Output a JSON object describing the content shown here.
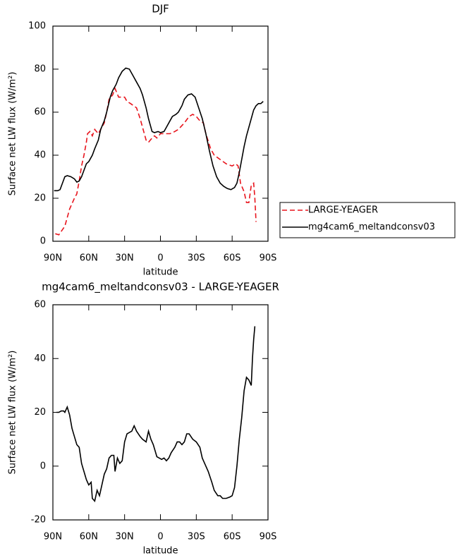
{
  "chart_data": [
    {
      "type": "line",
      "title": "DJF",
      "x_label": "latitude",
      "y_label": "Surface net LW flux (W/m²)",
      "xlim": [
        90,
        -90
      ],
      "xticks": [
        {
          "value": 90,
          "label": "90N"
        },
        {
          "value": 60,
          "label": "60N"
        },
        {
          "value": 30,
          "label": "30N"
        },
        0,
        {
          "value": -30,
          "label": "30S"
        },
        {
          "value": -60,
          "label": "60S"
        },
        {
          "value": -90,
          "label": "90S"
        }
      ],
      "ylim": [
        0,
        100
      ],
      "yticks": [
        0,
        20,
        40,
        60,
        80,
        100
      ],
      "legend": "outside-right",
      "series": [
        {
          "name": "LARGE-YEAGER",
          "color": "#e8141c",
          "line_style": "dashed",
          "x": [
            88,
            85,
            80,
            76,
            72,
            70,
            68,
            66,
            64,
            62,
            61,
            59,
            57,
            55,
            52,
            50,
            47,
            45,
            43,
            40,
            38,
            35,
            32,
            30,
            28,
            25,
            20,
            17,
            15,
            12,
            10,
            7,
            5,
            3,
            0,
            -5,
            -8,
            -12,
            -15,
            -20,
            -24,
            -27,
            -30,
            -33,
            -36,
            -38,
            -42,
            -45,
            -50,
            -55,
            -60,
            -63,
            -65,
            -67,
            -70,
            -72,
            -74,
            -76,
            -78,
            -79,
            -80
          ],
          "values": [
            3.5,
            3,
            7,
            15,
            20,
            22,
            28,
            35,
            40,
            46,
            50,
            51,
            49,
            52,
            50,
            52,
            55,
            60,
            66,
            68,
            71,
            67,
            67,
            67,
            65,
            64,
            62,
            57,
            53,
            47,
            46,
            48,
            49,
            48,
            50,
            50,
            50,
            51,
            52,
            55,
            58,
            59,
            58,
            56,
            55,
            50,
            43,
            40,
            38,
            36,
            35,
            36,
            35,
            27,
            23,
            18,
            18,
            26,
            27,
            20,
            9
          ]
        },
        {
          "name": "mg4cam6_meltandconsv03",
          "color": "#000000",
          "line_style": "solid",
          "x": [
            89,
            86,
            84,
            82,
            80,
            78,
            75,
            72,
            70,
            68,
            66,
            64,
            62,
            60,
            57,
            55,
            52,
            50,
            47,
            45,
            42,
            40,
            37,
            35,
            32,
            29,
            26,
            23,
            20,
            17,
            15,
            12,
            10,
            7,
            5,
            2,
            0,
            -3,
            -5,
            -8,
            -10,
            -13,
            -15,
            -18,
            -20,
            -23,
            -26,
            -29,
            -32,
            -35,
            -38,
            -41,
            -44,
            -47,
            -50,
            -53,
            -56,
            -59,
            -62,
            -64,
            -66,
            -68,
            -70,
            -72,
            -75,
            -78,
            -80,
            -82,
            -84,
            -86
          ],
          "values": [
            23.5,
            23.5,
            24,
            27,
            30,
            30.5,
            30,
            29,
            27.5,
            28,
            30,
            33,
            36,
            37,
            40,
            43,
            47,
            52,
            56,
            60,
            67,
            70,
            73,
            76,
            79,
            80.5,
            80,
            77,
            74,
            71,
            68,
            62,
            57,
            51,
            50.5,
            51,
            50.5,
            51,
            53,
            56,
            58,
            59,
            60,
            63,
            66,
            68,
            68.5,
            67,
            62,
            57,
            50,
            42,
            35,
            30,
            27,
            25.5,
            24.5,
            24,
            25,
            27,
            32,
            38,
            44,
            49,
            55,
            61,
            63,
            64,
            64,
            65
          ]
        }
      ]
    },
    {
      "type": "line",
      "title": "mg4cam6_meltandconsv03 - LARGE-YEAGER",
      "x_label": "latitude",
      "y_label": "Surface net LW flux (W/m²)",
      "xlim": [
        90,
        -90
      ],
      "xticks": [
        {
          "value": 90,
          "label": "90N"
        },
        {
          "value": 60,
          "label": "60N"
        },
        {
          "value": 30,
          "label": "30N"
        },
        0,
        {
          "value": -30,
          "label": "30S"
        },
        {
          "value": -60,
          "label": "60S"
        },
        {
          "value": -90,
          "label": "90S"
        }
      ],
      "ylim": [
        -20,
        60
      ],
      "yticks": [
        -20,
        0,
        20,
        40,
        60
      ],
      "color": "#000000",
      "x": [
        87,
        85,
        83,
        81,
        80,
        78,
        76,
        74,
        72,
        70,
        68,
        66,
        64,
        62,
        60,
        58,
        57,
        55,
        53,
        51,
        49,
        47,
        45,
        43,
        41,
        39,
        38,
        36,
        34,
        32,
        30,
        28,
        26,
        24,
        22,
        20,
        17,
        15,
        12,
        10,
        8,
        6,
        3,
        1,
        -1,
        -3,
        -5,
        -7,
        -9,
        -12,
        -14,
        -16,
        -18,
        -20,
        -22,
        -24,
        -27,
        -30,
        -33,
        -35,
        -37,
        -40,
        -43,
        -45,
        -48,
        -50,
        -52,
        -55,
        -58,
        -60,
        -62,
        -64,
        -66,
        -68,
        -70,
        -72,
        -74,
        -76,
        -77,
        -78,
        -79
      ],
      "values": [
        20,
        20,
        20.5,
        20.5,
        20,
        22,
        19,
        14,
        11,
        8,
        7,
        1,
        -2,
        -5,
        -7,
        -6,
        -12,
        -13,
        -9,
        -11,
        -7,
        -3,
        -1,
        3,
        4,
        4,
        -2,
        3,
        1,
        2,
        9,
        12,
        12.5,
        13,
        15,
        13,
        11,
        10,
        9,
        13,
        10,
        8,
        3.5,
        3,
        2.5,
        3,
        2,
        3,
        5,
        7,
        9,
        9,
        8,
        9,
        12,
        12,
        10,
        9,
        7,
        3,
        1,
        -2,
        -6,
        -9,
        -11,
        -11,
        -12,
        -12,
        -11.5,
        -11,
        -8,
        0,
        10,
        18,
        28,
        33,
        32,
        30,
        40,
        47,
        52
      ]
    }
  ]
}
